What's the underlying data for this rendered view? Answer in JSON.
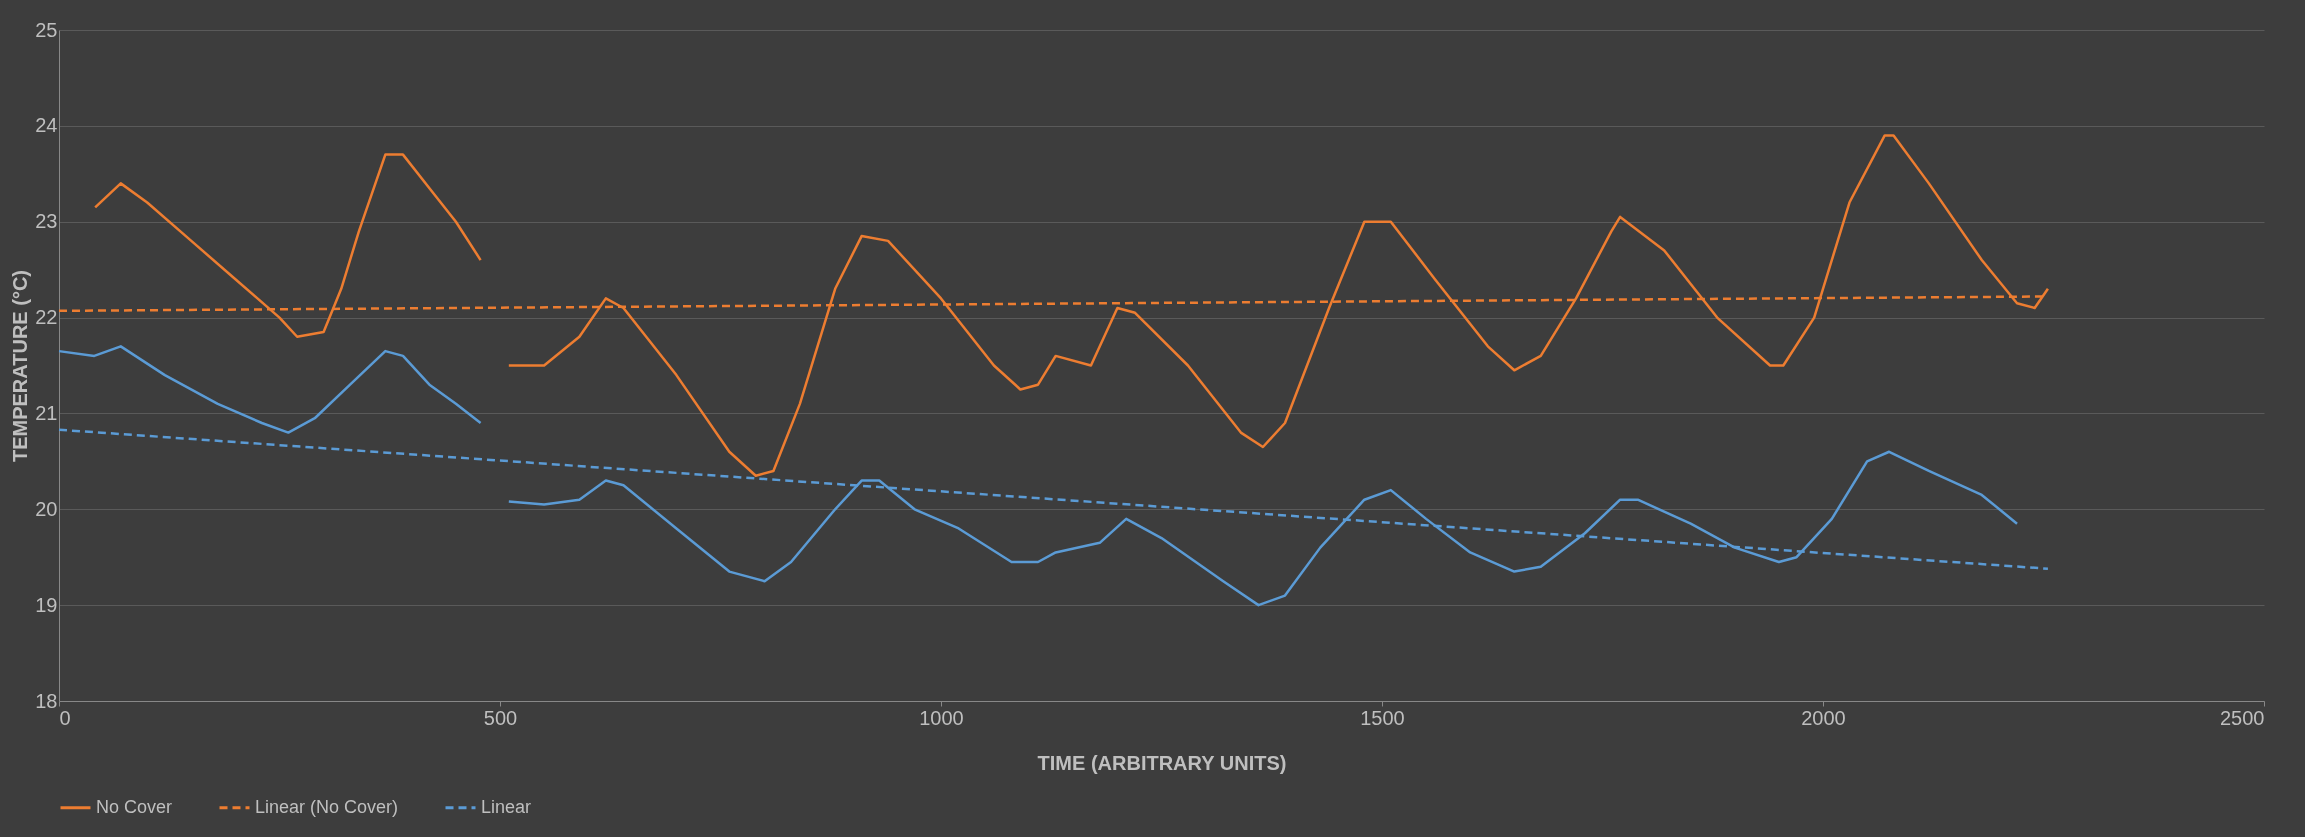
{
  "chart_data": {
    "type": "line",
    "xlabel": "TIME (ARBITRARY UNITS)",
    "ylabel": "TEMPERATURE (°C)",
    "xlim": [
      0,
      2500
    ],
    "xticks": [
      0,
      500,
      1000,
      1500,
      2000,
      2500
    ],
    "ylim": [
      18,
      25
    ],
    "yticks": [
      18,
      19,
      20,
      21,
      22,
      23,
      24,
      25
    ],
    "grid": "y",
    "legend": "bottom",
    "marker": "none",
    "series": [
      {
        "name": "No Cover",
        "color": "#ed7d31",
        "line_style": "solid",
        "x": [
          41,
          70,
          100,
          150,
          200,
          250,
          270,
          300,
          320,
          340,
          370,
          390,
          420,
          450,
          478,
          494,
          510,
          550,
          590,
          620,
          640,
          700,
          760,
          790,
          810,
          840,
          880,
          910,
          940,
          1000,
          1060,
          1090,
          1110,
          1130,
          1170,
          1200,
          1220,
          1280,
          1340,
          1365,
          1390,
          1440,
          1480,
          1510,
          1560,
          1620,
          1650,
          1680,
          1720,
          1760,
          1770,
          1820,
          1880,
          1940,
          1955,
          1990,
          2030,
          2070,
          2080,
          2120,
          2180,
          2220,
          2240,
          2255
        ],
        "values": [
          23.15,
          23.4,
          23.2,
          22.8,
          22.4,
          22.0,
          21.8,
          21.85,
          22.3,
          22.9,
          23.7,
          23.7,
          23.35,
          23.0,
          22.6,
          null,
          21.5,
          21.5,
          21.8,
          22.2,
          22.1,
          21.4,
          20.6,
          20.35,
          20.4,
          21.1,
          22.3,
          22.85,
          22.8,
          22.2,
          21.5,
          21.25,
          21.3,
          21.6,
          21.5,
          22.1,
          22.05,
          21.5,
          20.8,
          20.65,
          20.9,
          22.1,
          23.0,
          23.0,
          22.4,
          21.7,
          21.45,
          21.6,
          22.2,
          22.9,
          23.05,
          22.7,
          22.0,
          21.5,
          21.5,
          22.0,
          23.2,
          23.9,
          23.9,
          23.4,
          22.6,
          22.15,
          22.1,
          22.3
        ]
      },
      {
        "color": "#5b9bd5",
        "line_style": "solid",
        "x": [
          0,
          40,
          70,
          120,
          180,
          230,
          260,
          290,
          330,
          370,
          390,
          420,
          450,
          478,
          494,
          510,
          550,
          590,
          620,
          640,
          700,
          760,
          800,
          830,
          880,
          910,
          930,
          970,
          1020,
          1080,
          1110,
          1130,
          1180,
          1210,
          1250,
          1320,
          1360,
          1390,
          1430,
          1480,
          1510,
          1550,
          1600,
          1650,
          1680,
          1730,
          1770,
          1790,
          1850,
          1900,
          1950,
          1970,
          2010,
          2050,
          2075,
          2120,
          2180,
          2220
        ],
        "values": [
          21.65,
          21.6,
          21.7,
          21.4,
          21.1,
          20.9,
          20.8,
          20.95,
          21.3,
          21.65,
          21.6,
          21.3,
          21.1,
          20.9,
          null,
          20.08,
          20.05,
          20.1,
          20.3,
          20.25,
          19.8,
          19.35,
          19.25,
          19.45,
          20.0,
          20.3,
          20.3,
          20.0,
          19.8,
          19.45,
          19.45,
          19.55,
          19.65,
          19.9,
          19.7,
          19.25,
          19.0,
          19.1,
          19.6,
          20.1,
          20.2,
          19.9,
          19.55,
          19.35,
          19.4,
          19.75,
          20.1,
          20.1,
          19.85,
          19.6,
          19.45,
          19.5,
          19.9,
          20.5,
          20.6,
          20.4,
          20.15,
          19.85
        ]
      },
      {
        "name": "Linear (No Cover)",
        "color": "#ed7d31",
        "line_style": "dashed",
        "x": [
          0,
          2255
        ],
        "values": [
          22.07,
          22.22
        ]
      },
      {
        "name": "Linear",
        "color": "#5b9bd5",
        "line_style": "dashed",
        "x": [
          0,
          2255
        ],
        "values": [
          20.83,
          19.38
        ]
      }
    ]
  }
}
